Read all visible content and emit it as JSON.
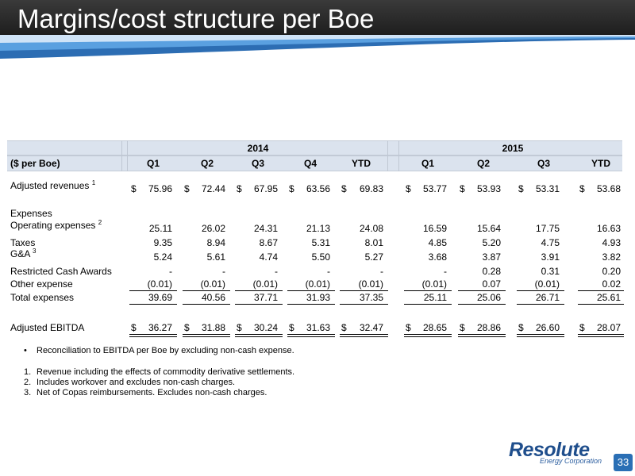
{
  "slide": {
    "title": "Margins/cost structure per Boe",
    "page_number": "33"
  },
  "table": {
    "unit_label": "($ per Boe)",
    "year_2014": "2014",
    "year_2015": "2015",
    "cols_2014": [
      "Q1",
      "Q2",
      "Q3",
      "Q4",
      "YTD"
    ],
    "cols_2015": [
      "Q1",
      "Q2",
      "Q3",
      "YTD"
    ],
    "dollar": "$",
    "rows": {
      "adj_rev": {
        "label": "Adjusted revenues",
        "sup": "1",
        "v14": [
          "75.96",
          "72.44",
          "67.95",
          "63.56",
          "69.83"
        ],
        "v15": [
          "53.77",
          "53.93",
          "53.31",
          "53.68"
        ]
      },
      "expenses": {
        "label": "Expenses"
      },
      "opex": {
        "label": "Operating expenses",
        "sup": "2",
        "v14": [
          "25.11",
          "26.02",
          "24.31",
          "21.13",
          "24.08"
        ],
        "v15": [
          "16.59",
          "15.64",
          "17.75",
          "16.63"
        ]
      },
      "taxes": {
        "label": "Taxes",
        "v14": [
          "9.35",
          "8.94",
          "8.67",
          "5.31",
          "8.01"
        ],
        "v15": [
          "4.85",
          "5.20",
          "4.75",
          "4.93"
        ]
      },
      "ga": {
        "label": "G&A",
        "sup": "3",
        "v14": [
          "5.24",
          "5.61",
          "4.74",
          "5.50",
          "5.27"
        ],
        "v15": [
          "3.68",
          "3.87",
          "3.91",
          "3.82"
        ]
      },
      "rca": {
        "label": "Restricted Cash Awards",
        "v14": [
          "-",
          "-",
          "-",
          "-",
          "-"
        ],
        "v15": [
          "-",
          "0.28",
          "0.31",
          "0.20"
        ]
      },
      "other": {
        "label": "Other expense",
        "v14": [
          "(0.01)",
          "(0.01)",
          "(0.01)",
          "(0.01)",
          "(0.01)"
        ],
        "v15": [
          "(0.01)",
          "0.07",
          "(0.01)",
          "0.02"
        ]
      },
      "total": {
        "label": "Total expenses",
        "v14": [
          "39.69",
          "40.56",
          "37.71",
          "31.93",
          "37.35"
        ],
        "v15": [
          "25.11",
          "25.06",
          "26.71",
          "25.61"
        ]
      },
      "ebitda": {
        "label": "Adjusted EBITDA",
        "v14": [
          "36.27",
          "31.88",
          "30.24",
          "31.63",
          "32.47"
        ],
        "v15": [
          "28.65",
          "28.86",
          "26.60",
          "28.07"
        ]
      }
    }
  },
  "notes": {
    "bullet_symbol": "•",
    "bullet": "Reconciliation to EBITDA per Boe by excluding non-cash expense.",
    "footnotes": [
      {
        "num": "1.",
        "text": "Revenue including the effects of commodity derivative settlements."
      },
      {
        "num": "2.",
        "text": "Includes workover and excludes non-cash charges."
      },
      {
        "num": "3.",
        "text": "Net of Copas reimbursements. Excludes non-cash charges."
      }
    ]
  },
  "logo": {
    "name": "Resolute",
    "subtitle": "Energy Corporation"
  },
  "colors": {
    "header_bg": "#1b1b1b",
    "table_header_bg": "#dbe3ee",
    "accent_blue": "#2a6fb5",
    "logo_blue": "#1f4e8c"
  }
}
